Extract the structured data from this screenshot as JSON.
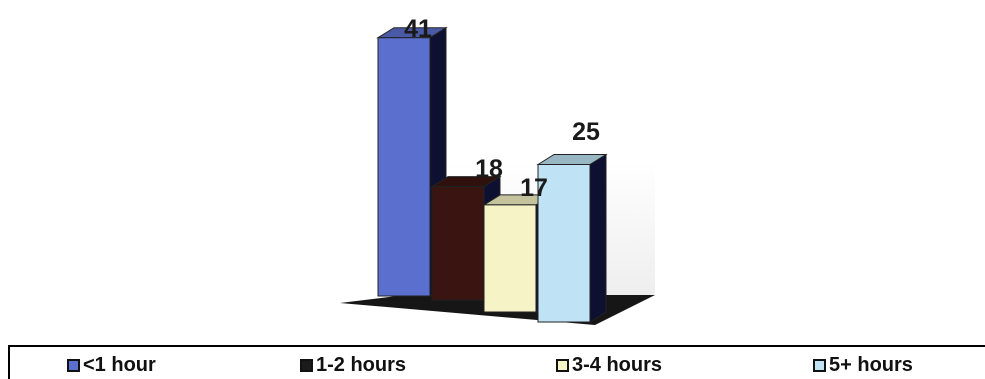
{
  "chart_data": {
    "type": "bar",
    "categories": [
      "<1 hour",
      "1-2 hours",
      "3-4 hours",
      "5+ hours"
    ],
    "values": [
      41,
      18,
      17,
      25
    ],
    "title": "",
    "xlabel": "",
    "ylabel": "",
    "ylim": [
      0,
      45
    ],
    "grid": false,
    "legend_placement": "bottom",
    "colors": [
      "#5b6fcf",
      "#3a1410",
      "#f6f3c6",
      "#bfe3f4"
    ],
    "data_labels": [
      "41",
      "18",
      "17",
      "25"
    ]
  },
  "legend": {
    "items": [
      {
        "label": "<1 hour",
        "color": "#5b6fcf"
      },
      {
        "label": "1-2 hours",
        "color": "#1b1b1b"
      },
      {
        "label": "3-4 hours",
        "color": "#f6f3c6"
      },
      {
        "label": "5+ hours",
        "color": "#bfe3f4"
      }
    ]
  }
}
